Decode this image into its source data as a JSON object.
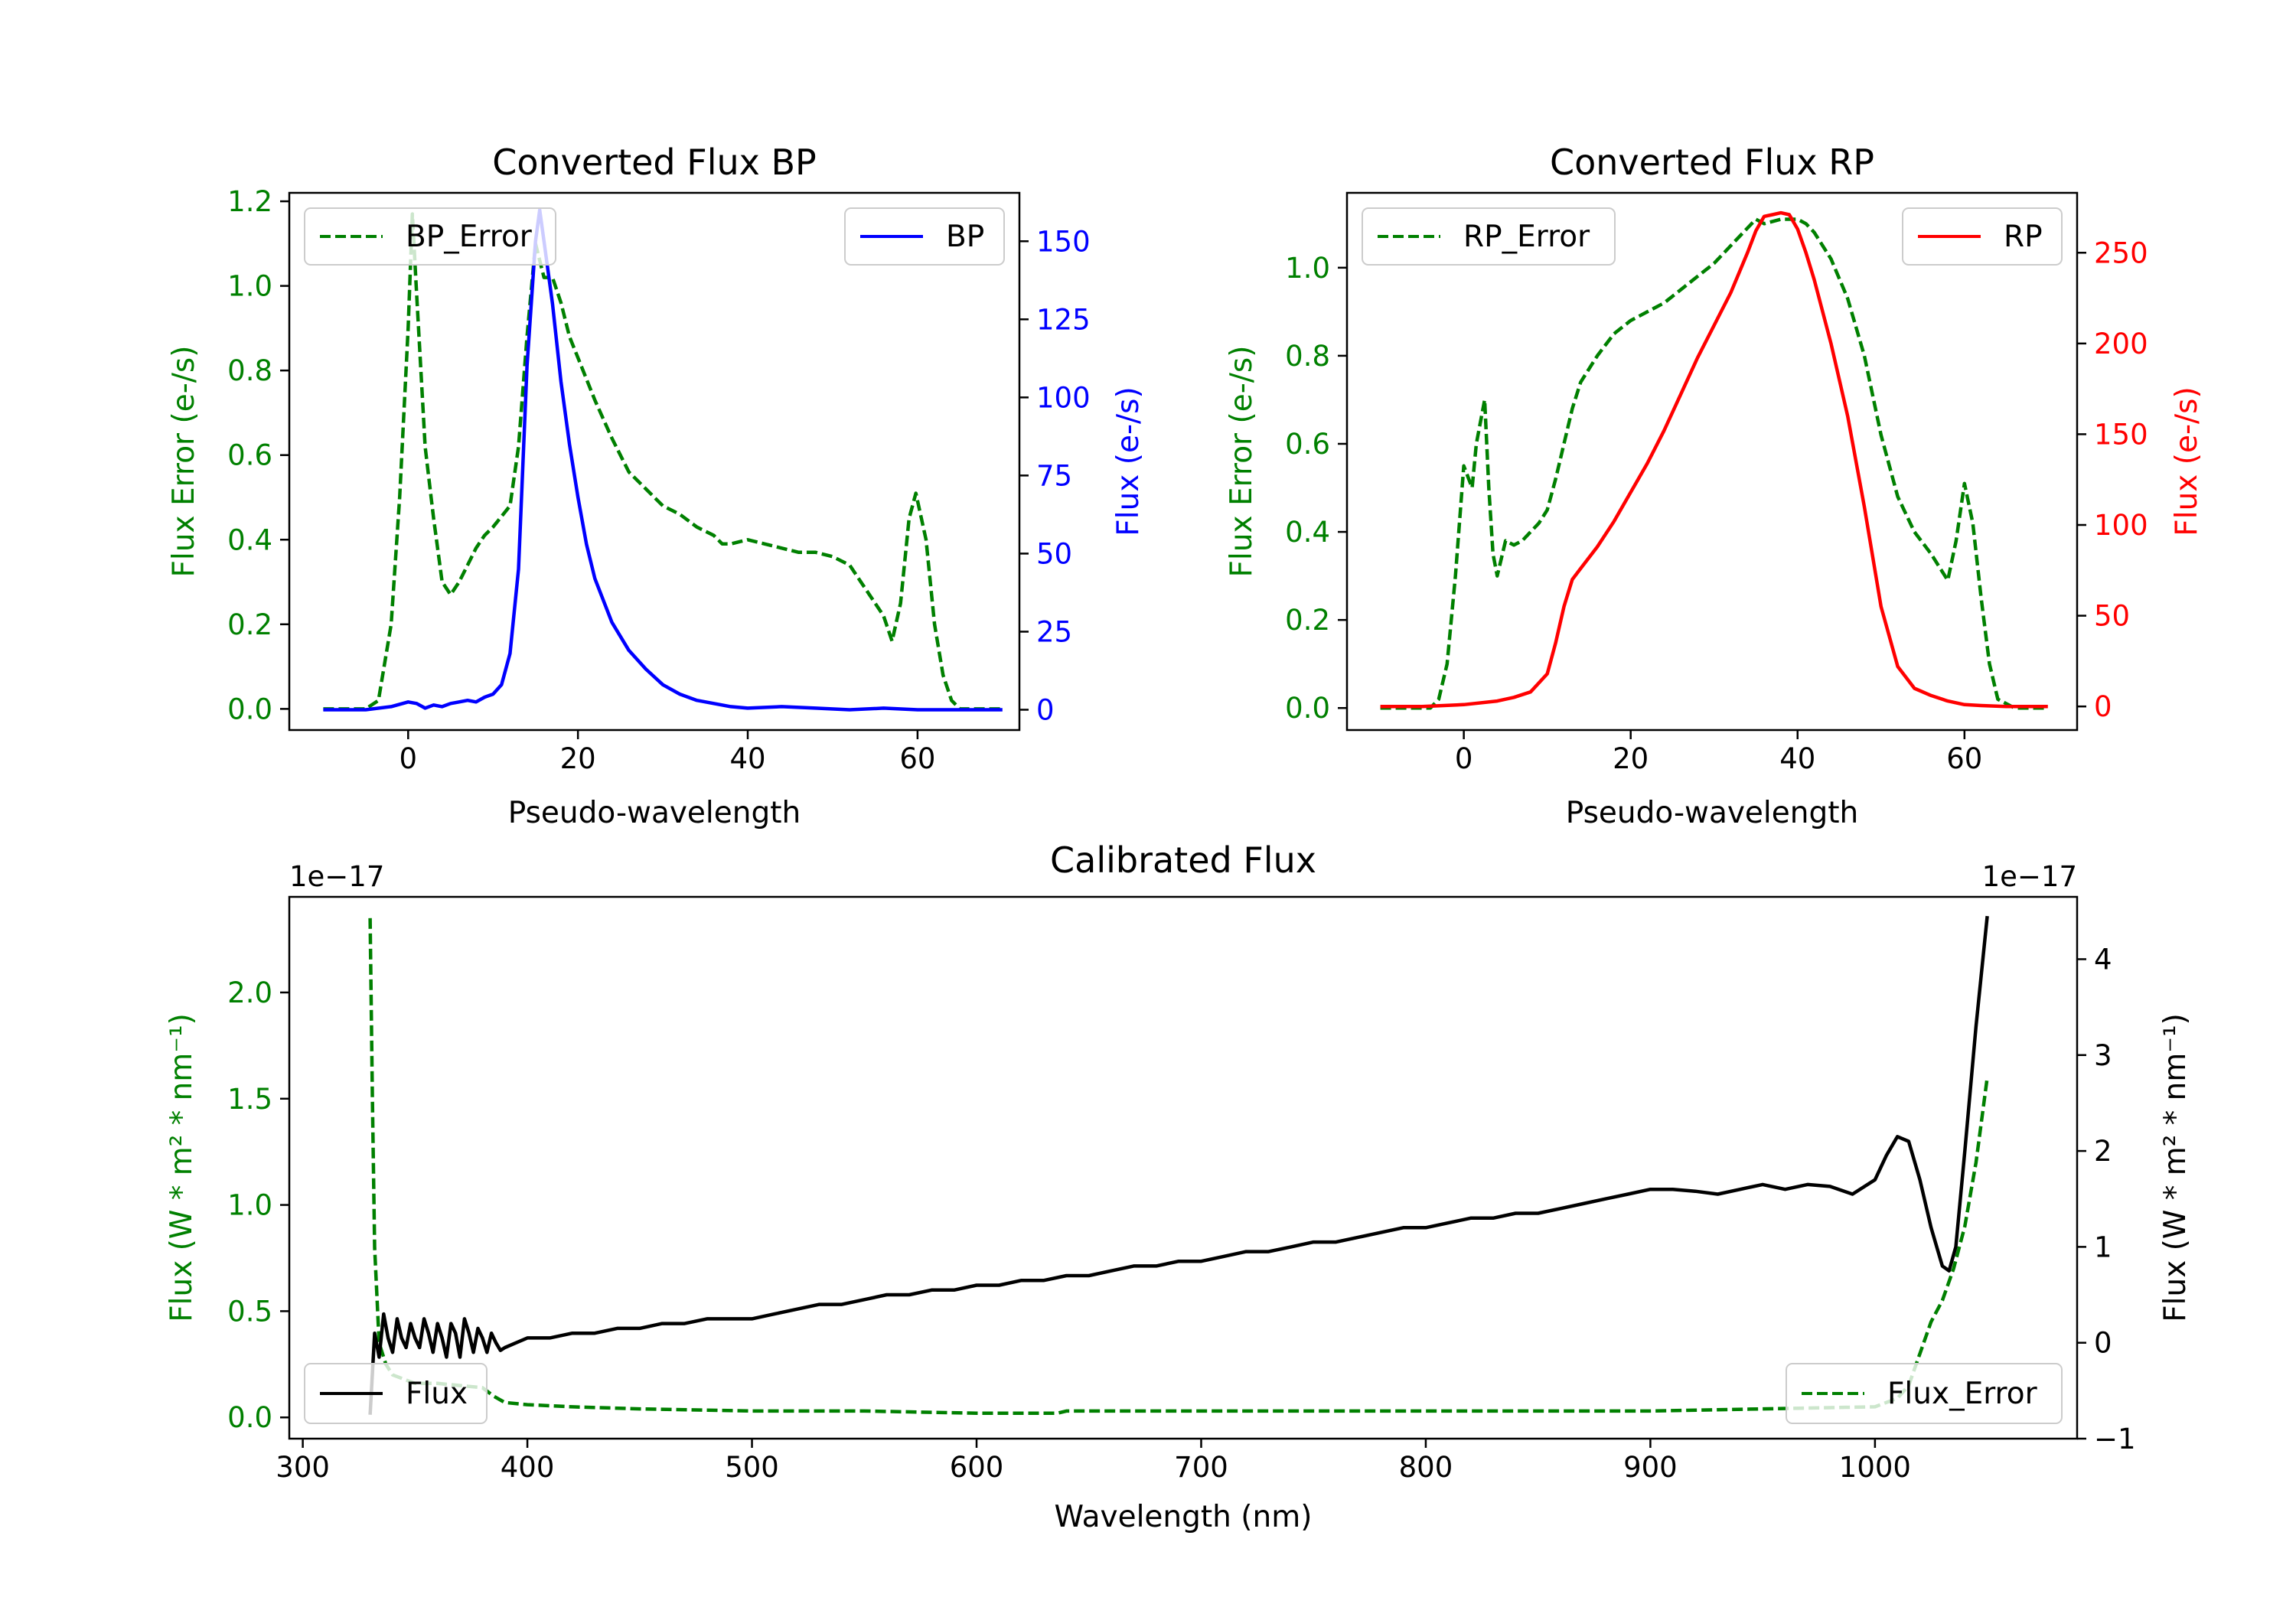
{
  "colors": {
    "error": "#008000",
    "bp": "#0000ff",
    "rp": "#ff0000",
    "flux": "#000000",
    "axis": "#000000",
    "background": "#ffffff"
  },
  "chart_data": [
    {
      "id": "bp",
      "type": "line",
      "title": "Converted Flux BP",
      "xlabel": "Pseudo-wavelength",
      "ylabel": "Flux Error (e-/s)",
      "ylabel_right": "Flux (e-/s)",
      "xlim": [
        -14,
        72
      ],
      "ylim": [
        -0.05,
        1.22
      ],
      "ylim_right": [
        -6.5,
        165.5
      ],
      "xticks": [
        0,
        20,
        40,
        60
      ],
      "yticks": [
        0.0,
        0.2,
        0.4,
        0.6,
        0.8,
        1.0,
        1.2
      ],
      "yticks_right": [
        0,
        25,
        50,
        75,
        100,
        125,
        150
      ],
      "ytick_labels": [
        "0.0",
        "0.2",
        "0.4",
        "0.6",
        "0.8",
        "1.0",
        "1.2"
      ],
      "ytick_labels_right": [
        "0",
        "25",
        "50",
        "75",
        "100",
        "125",
        "150"
      ],
      "legend_left": {
        "label": "BP_Error",
        "placement": "upper left"
      },
      "legend_right": {
        "label": "BP",
        "placement": "upper right"
      },
      "series": [
        {
          "name": "BP_Error",
          "axis": "left",
          "style": "dashed",
          "color": "#008000",
          "x": [
            -10,
            -5,
            -3.5,
            -2,
            -1,
            0,
            0.5,
            1,
            2,
            2.7,
            3,
            4,
            5,
            6,
            7,
            8,
            9,
            10,
            12,
            13,
            14,
            15,
            16,
            17,
            18,
            19,
            20,
            22,
            24,
            26,
            28,
            30,
            32,
            34,
            36,
            37,
            38,
            40,
            42,
            44,
            46,
            48,
            50,
            52,
            54,
            56,
            57,
            58,
            59,
            59.8,
            61,
            62,
            63,
            64,
            65,
            66,
            68,
            70
          ],
          "y": [
            0.0,
            0.0,
            0.02,
            0.2,
            0.5,
            0.9,
            1.17,
            0.98,
            0.62,
            0.5,
            0.45,
            0.3,
            0.27,
            0.3,
            0.34,
            0.38,
            0.41,
            0.43,
            0.48,
            0.62,
            0.88,
            1.1,
            1.02,
            1.02,
            0.96,
            0.88,
            0.83,
            0.73,
            0.64,
            0.56,
            0.52,
            0.48,
            0.46,
            0.43,
            0.41,
            0.39,
            0.39,
            0.4,
            0.39,
            0.38,
            0.37,
            0.37,
            0.36,
            0.34,
            0.28,
            0.22,
            0.16,
            0.25,
            0.45,
            0.51,
            0.4,
            0.2,
            0.08,
            0.02,
            0.0,
            0.0,
            0.0,
            0.0
          ]
        },
        {
          "name": "BP",
          "axis": "right",
          "style": "solid",
          "color": "#0000ff",
          "x": [
            -10,
            -5,
            -2,
            0,
            1,
            2,
            3,
            4,
            5,
            6,
            7,
            8,
            9,
            10,
            11,
            12,
            13,
            14,
            15,
            15.5,
            16,
            17,
            18,
            19,
            20,
            21,
            22,
            24,
            26,
            28,
            30,
            32,
            34,
            36,
            38,
            40,
            44,
            48,
            52,
            56,
            60,
            64,
            70
          ],
          "y": [
            0,
            0,
            1,
            2.5,
            2,
            0.5,
            1.5,
            1,
            2,
            2.5,
            3,
            2.5,
            4,
            5,
            8,
            18,
            45,
            110,
            150,
            160,
            150,
            130,
            105,
            85,
            68,
            53,
            42,
            28,
            19,
            13,
            8,
            5,
            3,
            2,
            1,
            0.5,
            1,
            0.5,
            0,
            0.5,
            0,
            0,
            0
          ]
        }
      ]
    },
    {
      "id": "rp",
      "type": "line",
      "title": "Converted Flux RP",
      "xlabel": "Pseudo-wavelength",
      "ylabel": "Flux Error (e-/s)",
      "ylabel_right": "Flux (e-/s)",
      "xlim": [
        -14,
        73.5
      ],
      "ylim": [
        -0.05,
        1.17
      ],
      "ylim_right": [
        -13,
        283
      ],
      "xticks": [
        0,
        20,
        40,
        60
      ],
      "yticks": [
        0.0,
        0.2,
        0.4,
        0.6,
        0.8,
        1.0
      ],
      "yticks_right": [
        0,
        50,
        100,
        150,
        200,
        250
      ],
      "ytick_labels": [
        "0.0",
        "0.2",
        "0.4",
        "0.6",
        "0.8",
        "1.0"
      ],
      "ytick_labels_right": [
        "0",
        "50",
        "100",
        "150",
        "200",
        "250"
      ],
      "legend_left": {
        "label": "RP_Error",
        "placement": "upper left"
      },
      "legend_right": {
        "label": "RP",
        "placement": "upper right"
      },
      "series": [
        {
          "name": "RP_Error",
          "axis": "left",
          "style": "dashed",
          "color": "#008000",
          "x": [
            -10,
            -5,
            -4,
            -3,
            -2,
            -1,
            0,
            1,
            1.5,
            2.5,
            3,
            3.5,
            4,
            5,
            6,
            7,
            8,
            9,
            10,
            11,
            12,
            13,
            14,
            16,
            18,
            20,
            22,
            24,
            26,
            28,
            30,
            32,
            34,
            35,
            36,
            38,
            40,
            41,
            42,
            44,
            46,
            48,
            50,
            52,
            54,
            56,
            57,
            58,
            59,
            60,
            61,
            62,
            63,
            64,
            66,
            70
          ],
          "y": [
            0.0,
            0.0,
            0.0,
            0.02,
            0.1,
            0.3,
            0.55,
            0.5,
            0.6,
            0.7,
            0.5,
            0.35,
            0.3,
            0.38,
            0.37,
            0.38,
            0.4,
            0.42,
            0.45,
            0.52,
            0.6,
            0.68,
            0.74,
            0.8,
            0.85,
            0.88,
            0.9,
            0.92,
            0.95,
            0.98,
            1.01,
            1.05,
            1.09,
            1.11,
            1.1,
            1.11,
            1.11,
            1.1,
            1.08,
            1.02,
            0.93,
            0.8,
            0.62,
            0.48,
            0.4,
            0.35,
            0.32,
            0.29,
            0.38,
            0.51,
            0.42,
            0.25,
            0.1,
            0.02,
            0.0,
            0.0
          ]
        },
        {
          "name": "RP",
          "axis": "right",
          "style": "solid",
          "color": "#ff0000",
          "x": [
            -10,
            -5,
            0,
            4,
            6,
            8,
            10,
            11,
            12,
            13,
            14,
            16,
            18,
            20,
            22,
            24,
            26,
            28,
            30,
            32,
            34,
            35,
            36,
            37,
            38,
            39,
            40,
            41,
            42,
            44,
            46,
            48,
            50,
            52,
            54,
            56,
            58,
            60,
            62,
            65,
            70
          ],
          "y": [
            0,
            0,
            1,
            3,
            5,
            8,
            18,
            35,
            55,
            70,
            76,
            88,
            102,
            118,
            134,
            152,
            172,
            192,
            210,
            228,
            250,
            262,
            270,
            271,
            272,
            271,
            263,
            250,
            235,
            200,
            160,
            110,
            55,
            22,
            10,
            6,
            3,
            1,
            0.5,
            0,
            0
          ]
        }
      ]
    },
    {
      "id": "calibrated",
      "type": "line",
      "title": "Calibrated Flux",
      "xlabel": "Wavelength (nm)",
      "ylabel": "Flux (W * m² * nm⁻¹)",
      "ylabel_right": "Flux (W * m² * nm⁻¹)",
      "offset_left": "1e−17",
      "offset_right": "1e−17",
      "xlim": [
        294,
        1090
      ],
      "ylim": [
        -0.1,
        2.45
      ],
      "ylim_right": [
        -1.0,
        4.65
      ],
      "xticks": [
        300,
        400,
        500,
        600,
        700,
        800,
        900,
        1000
      ],
      "yticks": [
        0.0,
        0.5,
        1.0,
        1.5,
        2.0
      ],
      "yticks_right": [
        -1,
        0,
        1,
        2,
        3,
        4
      ],
      "ytick_labels": [
        "0.0",
        "0.5",
        "1.0",
        "1.5",
        "2.0"
      ],
      "ytick_labels_right": [
        "−1",
        "0",
        "1",
        "2",
        "3",
        "4"
      ],
      "legend_left": {
        "label": "Flux",
        "placement": "lower left"
      },
      "legend_right": {
        "label": "Flux_Error",
        "placement": "lower right"
      },
      "series": [
        {
          "name": "Flux_Error",
          "axis": "left",
          "style": "dashed",
          "color": "#008000",
          "x": [
            330,
            331,
            332,
            334,
            337,
            340,
            345,
            350,
            360,
            370,
            380,
            385,
            390,
            400,
            420,
            450,
            500,
            550,
            600,
            636,
            640,
            700,
            800,
            900,
            950,
            1000,
            1010,
            1015,
            1020,
            1025,
            1030,
            1035,
            1040,
            1045,
            1050
          ],
          "y": [
            2.35,
            1.5,
            0.8,
            0.35,
            0.25,
            0.2,
            0.18,
            0.16,
            0.16,
            0.15,
            0.14,
            0.1,
            0.07,
            0.06,
            0.05,
            0.04,
            0.03,
            0.03,
            0.02,
            0.02,
            0.03,
            0.03,
            0.03,
            0.03,
            0.04,
            0.05,
            0.09,
            0.15,
            0.3,
            0.45,
            0.55,
            0.7,
            0.9,
            1.2,
            1.6
          ]
        },
        {
          "name": "Flux",
          "axis": "right",
          "style": "solid",
          "color": "#000000",
          "x": [
            330,
            332,
            334,
            336,
            338,
            340,
            342,
            344,
            346,
            348,
            350,
            352,
            354,
            356,
            358,
            360,
            362,
            364,
            366,
            368,
            370,
            372,
            374,
            376,
            378,
            380,
            382,
            384,
            386,
            388,
            390,
            395,
            400,
            410,
            420,
            430,
            440,
            450,
            460,
            470,
            480,
            490,
            500,
            510,
            520,
            530,
            540,
            550,
            560,
            570,
            580,
            590,
            600,
            610,
            620,
            630,
            640,
            650,
            660,
            670,
            680,
            690,
            700,
            710,
            720,
            730,
            740,
            750,
            760,
            770,
            780,
            790,
            800,
            810,
            820,
            830,
            840,
            850,
            860,
            870,
            880,
            890,
            900,
            910,
            920,
            930,
            940,
            950,
            960,
            970,
            980,
            990,
            1000,
            1005,
            1010,
            1015,
            1020,
            1025,
            1030,
            1033,
            1036,
            1040,
            1045,
            1050
          ],
          "y": [
            -0.75,
            0.1,
            -0.15,
            0.3,
            0.05,
            -0.1,
            0.25,
            0.05,
            -0.05,
            0.2,
            0.05,
            -0.05,
            0.25,
            0.1,
            -0.1,
            0.2,
            0.05,
            -0.15,
            0.2,
            0.1,
            -0.15,
            0.25,
            0.1,
            -0.1,
            0.15,
            0.05,
            -0.1,
            0.1,
            0.0,
            -0.08,
            -0.05,
            0.0,
            0.05,
            0.05,
            0.1,
            0.1,
            0.15,
            0.15,
            0.2,
            0.2,
            0.25,
            0.25,
            0.25,
            0.3,
            0.35,
            0.4,
            0.4,
            0.45,
            0.5,
            0.5,
            0.55,
            0.55,
            0.6,
            0.6,
            0.65,
            0.65,
            0.7,
            0.7,
            0.75,
            0.8,
            0.8,
            0.85,
            0.85,
            0.9,
            0.95,
            0.95,
            1.0,
            1.05,
            1.05,
            1.1,
            1.15,
            1.2,
            1.2,
            1.25,
            1.3,
            1.3,
            1.35,
            1.35,
            1.4,
            1.45,
            1.5,
            1.55,
            1.6,
            1.6,
            1.58,
            1.55,
            1.6,
            1.65,
            1.6,
            1.65,
            1.63,
            1.55,
            1.7,
            1.95,
            2.15,
            2.1,
            1.7,
            1.2,
            0.8,
            0.75,
            1.0,
            2.0,
            3.3,
            4.45
          ]
        }
      ]
    }
  ]
}
